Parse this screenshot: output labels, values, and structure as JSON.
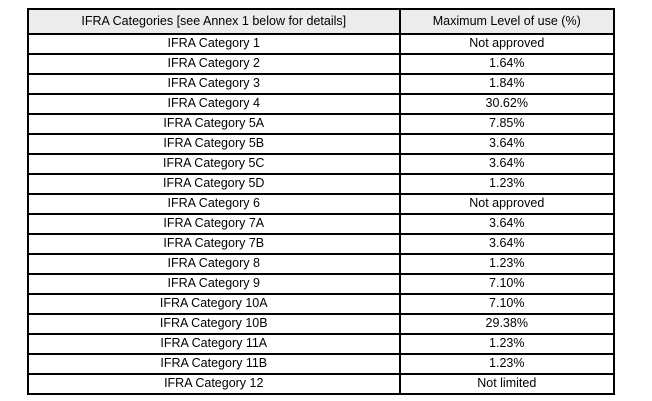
{
  "table": {
    "header": {
      "category": "IFRA Categories [see Annex 1 below for details]",
      "max_level": "Maximum Level of use (%)"
    },
    "rows": [
      {
        "category": "IFRA Category 1",
        "value": "Not approved"
      },
      {
        "category": "IFRA Category 2",
        "value": "1.64%"
      },
      {
        "category": "IFRA Category 3",
        "value": "1.84%"
      },
      {
        "category": "IFRA Category 4",
        "value": "30.62%"
      },
      {
        "category": "IFRA Category 5A",
        "value": "7.85%"
      },
      {
        "category": "IFRA Category 5B",
        "value": "3.64%"
      },
      {
        "category": "IFRA Category 5C",
        "value": "3.64%"
      },
      {
        "category": "IFRA Category 5D",
        "value": "1.23%"
      },
      {
        "category": "IFRA Category 6",
        "value": "Not approved"
      },
      {
        "category": "IFRA Category 7A",
        "value": "3.64%"
      },
      {
        "category": "IFRA Category 7B",
        "value": "3.64%"
      },
      {
        "category": "IFRA Category 8",
        "value": "1.23%"
      },
      {
        "category": "IFRA Category 9",
        "value": "7.10%"
      },
      {
        "category": "IFRA Category 10A",
        "value": "7.10%"
      },
      {
        "category": "IFRA Category 10B",
        "value": "29.38%"
      },
      {
        "category": "IFRA Category 11A",
        "value": "1.23%"
      },
      {
        "category": "IFRA Category 11B",
        "value": "1.23%"
      },
      {
        "category": "IFRA Category 12",
        "value": "Not limited"
      }
    ],
    "colors": {
      "header_bg": "#ececec",
      "border": "#000000"
    }
  }
}
